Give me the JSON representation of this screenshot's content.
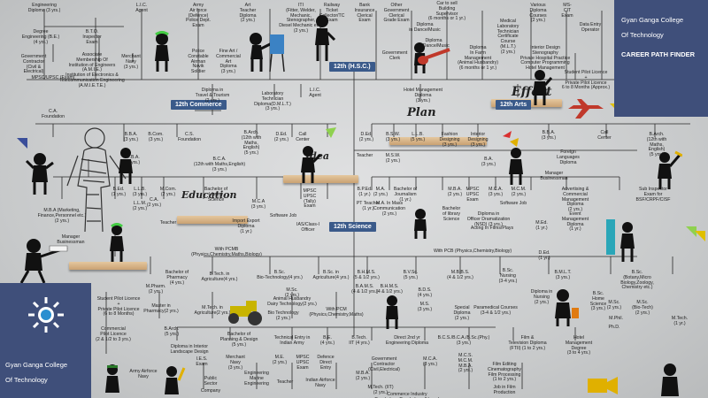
{
  "brand": {
    "college_top_line1": "Gyan Ganga College",
    "college_top_line2": "Of Technology",
    "title": "CAREER PATH FINDER",
    "college_bottom_line1": "Gyan Ganga College",
    "college_bottom_line2": "Of Technology"
  },
  "streams": {
    "hsc": "12th (H.S.C.)",
    "commerce": "12th Commerce",
    "arts": "12th Arts",
    "science": "12th Science"
  },
  "script_words": {
    "effort": "Effort",
    "plan": "Plan",
    "education": "Education",
    "idea": "Idea"
  },
  "nodes": [
    {
      "id": "n1",
      "text": "Engineering\nDiploma (3 yrs.)"
    },
    {
      "id": "n2",
      "text": "L.I.C.\nAgent"
    },
    {
      "id": "n3",
      "text": "Army\nAir force\n(Defence)\nPolice Dept.\nExam"
    },
    {
      "id": "n4",
      "text": "Art\nTeacher\nDiploma\n(2 yrs.)"
    },
    {
      "id": "n5",
      "text": "ITI\n(Fitter, Welder,\nMechanic,\nStenographer,\nDiesel Mechanic etc.)\n(2 yrs.)"
    },
    {
      "id": "n6",
      "text": "Railway\nTicket\nCollector/TC\nExam"
    },
    {
      "id": "n7",
      "text": "Bank\nInsurance\nClerical\nExam"
    },
    {
      "id": "n8",
      "text": "Other\nGovernment\nClerical\nGrade Exam"
    },
    {
      "id": "n9",
      "text": "Car to sell\nBuilding\nSupervisor\n(6 months or 1 yr.)"
    },
    {
      "id": "n10",
      "text": "Diploma\nin Dance/Music"
    },
    {
      "id": "n11",
      "text": "Medical\nLaboratory\nTechnician\nCertificate\nCourse\n(M.L.T.)\n(2 yrs.)"
    },
    {
      "id": "n12",
      "text": "Various\nDiploma\nCourses\n(2 yrs.)"
    },
    {
      "id": "n13",
      "text": "MS-\nCIT\nExam"
    },
    {
      "id": "n14",
      "text": "Data Entry\nOperator"
    },
    {
      "id": "n15",
      "text": "Degree\nEngineering (B.E.)\n(4 yrs.)"
    },
    {
      "id": "n16",
      "text": "B.T.O.\nInspector\nExam"
    },
    {
      "id": "n17",
      "text": "Government\nContractor\n(Civil &\nElectrical)"
    },
    {
      "id": "n18",
      "text": "Associate\nMembership Of\nInstitution of Engineers\n(A.M.I.E.)\nInstitution of Electronics &\nTelecommunication Engineering\n(A.M.I.E.T.E.)"
    },
    {
      "id": "n19",
      "text": "Merchant\nNavy\n(3 yrs.)"
    },
    {
      "id": "n20",
      "text": "Police\nConstable\nAirman\nNavik\nSoldier"
    },
    {
      "id": "n21",
      "text": "Fine Art /\nCommercial\nArt\nDiploma\n(3 yrs.)"
    },
    {
      "id": "n22",
      "text": "Government\nClerk"
    },
    {
      "id": "n23",
      "text": "Diploma\nin Dance/Music"
    },
    {
      "id": "n24",
      "text": "Diploma\nIn Farm\nManagement\n(Animal Husbandry)\n(6 months or 1 yr.)"
    },
    {
      "id": "n25",
      "text": "Interior Design\nStenography\nPrivate Hospital Practice\nComputer Programming\nHotel Management"
    },
    {
      "id": "n26",
      "text": "Student Pilot Licence\n+\nPrivate Pilot Licence\n6 to 8 Months (Approx.)"
    },
    {
      "id": "n27",
      "text": "MPSC/UPSC (Exam)"
    },
    {
      "id": "n28",
      "text": "Diploma in\nTravel & Tourism\n(2 yrs.)"
    },
    {
      "id": "n29",
      "text": "Laboratory\nTechnician\nDiploma(D.M.L.T.)\n(3 yrs.)"
    },
    {
      "id": "n30",
      "text": "L.I.C.\nAgent"
    },
    {
      "id": "n31",
      "text": "Hotel Management\nDiploma\n(3 yrs.)"
    },
    {
      "id": "n32",
      "text": "C.A.\nFoundation"
    },
    {
      "id": "n33",
      "text": "B.B.A.\n(3 yrs.)"
    },
    {
      "id": "n34",
      "text": "C.S.\nFoundation"
    },
    {
      "id": "n35",
      "text": "B.Arch.\n(12th with\nMaths,\nEnglish)\n(5 yrs.)"
    },
    {
      "id": "n36",
      "text": "D.Ed.\n(2 yrs.)"
    },
    {
      "id": "n37",
      "text": "Call\nCenter"
    },
    {
      "id": "n38",
      "text": "D.Ed.\n(2 yrs.)"
    },
    {
      "id": "n39",
      "text": "B.S.W.\n(3 yrs.)"
    },
    {
      "id": "n40",
      "text": "L.L.B.\n(5 yrs.)"
    },
    {
      "id": "n41",
      "text": "Fashion\nDesigning\n(3 yrs.)"
    },
    {
      "id": "n42",
      "text": "Interior\nDesigning\n(3 yrs.)"
    },
    {
      "id": "n43",
      "text": "B.B.A.\n(3 yrs.)"
    },
    {
      "id": "n44",
      "text": "Call\nCenter"
    },
    {
      "id": "n45",
      "text": "B.Arch.\n(12th with\nMaths,\nEnglish)\n(5 yrs.)"
    },
    {
      "id": "n46",
      "text": "M.B.A.\n(2 yrs.)"
    },
    {
      "id": "n47",
      "text": "B.Com.\n(3 yrs.)"
    },
    {
      "id": "n48",
      "text": "B.C.A.\n(12th with Maths,English)\n(3 yrs.)"
    },
    {
      "id": "n49",
      "text": "Teacher"
    },
    {
      "id": "n50",
      "text": "M.S.W.\n(2 yrs.)"
    },
    {
      "id": "n51",
      "text": "B.A.\n(3 yrs.)"
    },
    {
      "id": "n52",
      "text": "Foreign\nLanguages\nDiploma"
    },
    {
      "id": "n53",
      "text": "Manager\nBusinessman"
    },
    {
      "id": "n54",
      "text": "M.B.A (Marketing,\nFinance,Personnel etc.)\n(2 yrs.)"
    },
    {
      "id": "n55",
      "text": "L.L.B.\n(3 yrs.)"
    },
    {
      "id": "n56",
      "text": "L.L.M.\n(2 yrs.)"
    },
    {
      "id": "n57",
      "text": "C.A.\n(2 yrs.)"
    },
    {
      "id": "n58",
      "text": "M.Com.\n(2 yrs.)"
    },
    {
      "id": "n59",
      "text": "B.Ed.\n(1 yrs.)"
    },
    {
      "id": "n60",
      "text": "Bachelor of\nLibrary\nScience"
    },
    {
      "id": "n61",
      "text": "M.C.A\n(3 yrs.)"
    },
    {
      "id": "n62",
      "text": "MPSC\nUPSC\n(Tally)\nExam"
    },
    {
      "id": "n63",
      "text": "B.P.Ed.\n(1 yr.)"
    },
    {
      "id": "n64",
      "text": "M.A.\n(2 yrs.)"
    },
    {
      "id": "n65",
      "text": "Bachelor of\nJournalism\n(1 yr.)"
    },
    {
      "id": "n66",
      "text": "M.B.A.\n(2 yrs.)"
    },
    {
      "id": "n67",
      "text": "MPSC\nUPSC\nExam"
    },
    {
      "id": "n68",
      "text": "M.C.A.\n(3 yrs.)"
    },
    {
      "id": "n69",
      "text": "M.C.M.\n(2 yrs.)"
    },
    {
      "id": "n70",
      "text": "Advertising &\nCommercial\nManagement\nDiploma\n(2 yrs.)"
    },
    {
      "id": "n71",
      "text": "Sub Inspector\nExam for\nBSF/CRPF/CISF"
    },
    {
      "id": "n72",
      "text": "Manager\nBusinessman"
    },
    {
      "id": "n73",
      "text": "Teacher"
    },
    {
      "id": "n74",
      "text": "Import Export\nDiploma\n(1 yr.)"
    },
    {
      "id": "n75",
      "text": "Software Job"
    },
    {
      "id": "n76",
      "text": "IAS/Class-I\nOfficer"
    },
    {
      "id": "n77",
      "text": "PT Teacher\n(1 yr.)"
    },
    {
      "id": "n78",
      "text": "M.A. In Mass\nCommunication\n(2 yrs.)"
    },
    {
      "id": "n79",
      "text": "Bachelor\nof library\nScience"
    },
    {
      "id": "n80",
      "text": "Diploma in\nOfficer Dramatization\n(NSD) (3 yrs.)"
    },
    {
      "id": "n81",
      "text": "Software Job"
    },
    {
      "id": "n82",
      "text": "Acting In Films/Plays"
    },
    {
      "id": "n83",
      "text": "M.Ed.\n(1 yr.)"
    },
    {
      "id": "n84",
      "text": "Event\nManagement\nDiploma\n(1 yr.)"
    },
    {
      "id": "n85",
      "text": "With PCMB\n(Physics,Chemistry,Maths,Biology)"
    },
    {
      "id": "n86",
      "text": "With PCB (Physics,Chemistry,Biology)"
    },
    {
      "id": "n87",
      "text": "D.Ed.\n(1 yr.)"
    },
    {
      "id": "n88",
      "text": "Bachelor of\nPharmacy\n(4 yrs.)"
    },
    {
      "id": "n89",
      "text": "B.Tech. in\nAgriculture(4 yrs.)"
    },
    {
      "id": "n90",
      "text": "B.Sc.\nBio-Technology(4 yrs.)"
    },
    {
      "id": "n91",
      "text": "B.Sc. in\nAgriculture(4 yrs.)"
    },
    {
      "id": "n92",
      "text": "B.H.M.S.\n(5 & 1/2 yrs.)"
    },
    {
      "id": "n93",
      "text": "B.V.Sc.\n(5 yrs.)"
    },
    {
      "id": "n94",
      "text": "M.B.B.S.\n(4 & 1/2 yrs.)"
    },
    {
      "id": "n95",
      "text": "B.Sc.\nNursing\n(3-4 yrs.)"
    },
    {
      "id": "n96",
      "text": "B.M.L.T.\n(3 yrs.)"
    },
    {
      "id": "n97",
      "text": "B.Sc.\n(Botany,Micro\nBiology,Zoology,\nChemistry etc.)"
    },
    {
      "id": "n98",
      "text": "Student Pilot Licence\n+\nPrivate Pilot Licence\n(6 to 8 Months)"
    },
    {
      "id": "n99",
      "text": "M.Pharm.\n(2 yrs.)"
    },
    {
      "id": "n100",
      "text": "Master in\nPharmacy(2 yrs.)"
    },
    {
      "id": "n101",
      "text": "M.Tech. in\nAgriculture(2 yrs.)"
    },
    {
      "id": "n102",
      "text": "M.Sc.\n(2 yrs.)"
    },
    {
      "id": "n103",
      "text": "Animal Husbandry\nDairy Technology(2 yrs.)"
    },
    {
      "id": "n104",
      "text": "Bio Technology\n(2 yrs.)"
    },
    {
      "id": "n105",
      "text": "With PCM\n(Physics,Chemistry,Maths)"
    },
    {
      "id": "n106",
      "text": "B.A.M.S.\n(4 & 1/2 yrs.)"
    },
    {
      "id": "n107",
      "text": "B.H.M.S.\n(4 & 1/2 yrs.)"
    },
    {
      "id": "n108",
      "text": "B.D.S.\n(4 yrs.)"
    },
    {
      "id": "n109",
      "text": "M.S.\n(3 yrs.)"
    },
    {
      "id": "n110",
      "text": "Special\nDiploma\n(2 yrs.)"
    },
    {
      "id": "n111",
      "text": "Paramedical Courses\n(3-4 & 1/2 yrs.)"
    },
    {
      "id": "n112",
      "text": "Diploma in\nNursing\n(2 yrs.)"
    },
    {
      "id": "n113",
      "text": "B.Sc.\nHome\nScience\n(3 yrs.)"
    },
    {
      "id": "n114",
      "text": "M.Sc.\n(Bio-Tech)\n(2 yrs.)"
    },
    {
      "id": "n115",
      "text": "M.Sc.\n(2 yrs.)"
    },
    {
      "id": "n116",
      "text": "M.Phil."
    },
    {
      "id": "n117",
      "text": "Ph.D."
    },
    {
      "id": "n118",
      "text": "M.Tech.\n(1 yr.)"
    },
    {
      "id": "n119",
      "text": "Commercial\nPilot Licence\n(2 & 1/2 to 3 yrs.)"
    },
    {
      "id": "n120",
      "text": "B.Arch.\n(5 yrs.)"
    },
    {
      "id": "n121",
      "text": "Diploma in Interior\nLandscape Design"
    },
    {
      "id": "n122",
      "text": "Bachelor of\nPlanning & Design\n(5 yrs.)"
    },
    {
      "id": "n123",
      "text": "Technical Entry in\nIndian Army"
    },
    {
      "id": "n124",
      "text": "B.E.\n(4 yrs.)"
    },
    {
      "id": "n125",
      "text": "B.Tech.\nIIT (4 yrs.)"
    },
    {
      "id": "n126",
      "text": "Direct 2nd yr\nEngineering Diploma"
    },
    {
      "id": "n127",
      "text": "B.C.S./B.C.A./B.Sc.(Phy.)\n(3 yrs.)"
    },
    {
      "id": "n128",
      "text": "Film &\nTelevision Diploma\n(FTII) (1 to 2 yrs.)"
    },
    {
      "id": "n129",
      "text": "Hotel\nManagement\nDegree\n(3 to 4 yrs.)"
    },
    {
      "id": "n130",
      "text": "Army Airforce\nNavy"
    },
    {
      "id": "n131",
      "text": "I.E.S.\nExam"
    },
    {
      "id": "n132",
      "text": "Merchant\nNavy\n(3 yrs.)"
    },
    {
      "id": "n133",
      "text": "M.E.\n(2 yrs.)"
    },
    {
      "id": "n134",
      "text": "MPSC\nUPSC\nExam"
    },
    {
      "id": "n135",
      "text": "Defence\nDirect\nEntry"
    },
    {
      "id": "n136",
      "text": "Government\nContractor\n(Civil,Electrical)"
    },
    {
      "id": "n137",
      "text": "M.C.A.\n(3 yrs.)"
    },
    {
      "id": "n138",
      "text": "M.C.S.\nM.C.M.\nM.B.A.\n(2 yrs.)"
    },
    {
      "id": "n139",
      "text": "Film Editing\nCinematography\nFilm Processing\n(1 to 2 yrs.)"
    },
    {
      "id": "n140",
      "text": "Job in Film\nProduction"
    },
    {
      "id": "n141",
      "text": "Public\nSector"
    },
    {
      "id": "n142",
      "text": "Company"
    },
    {
      "id": "n143",
      "text": "Engineering\nMarine\nEngineering"
    },
    {
      "id": "n144",
      "text": "Teacher"
    },
    {
      "id": "n145",
      "text": "Indian Airforce\nNavy"
    },
    {
      "id": "n146",
      "text": "M.B.A.\n(2 yrs.)"
    },
    {
      "id": "n147",
      "text": "M.Tech. (IIT)\n(2 yrs.)"
    },
    {
      "id": "n148",
      "text": "Commerce Industry\nPsychology Psychology (Home)"
    }
  ]
}
